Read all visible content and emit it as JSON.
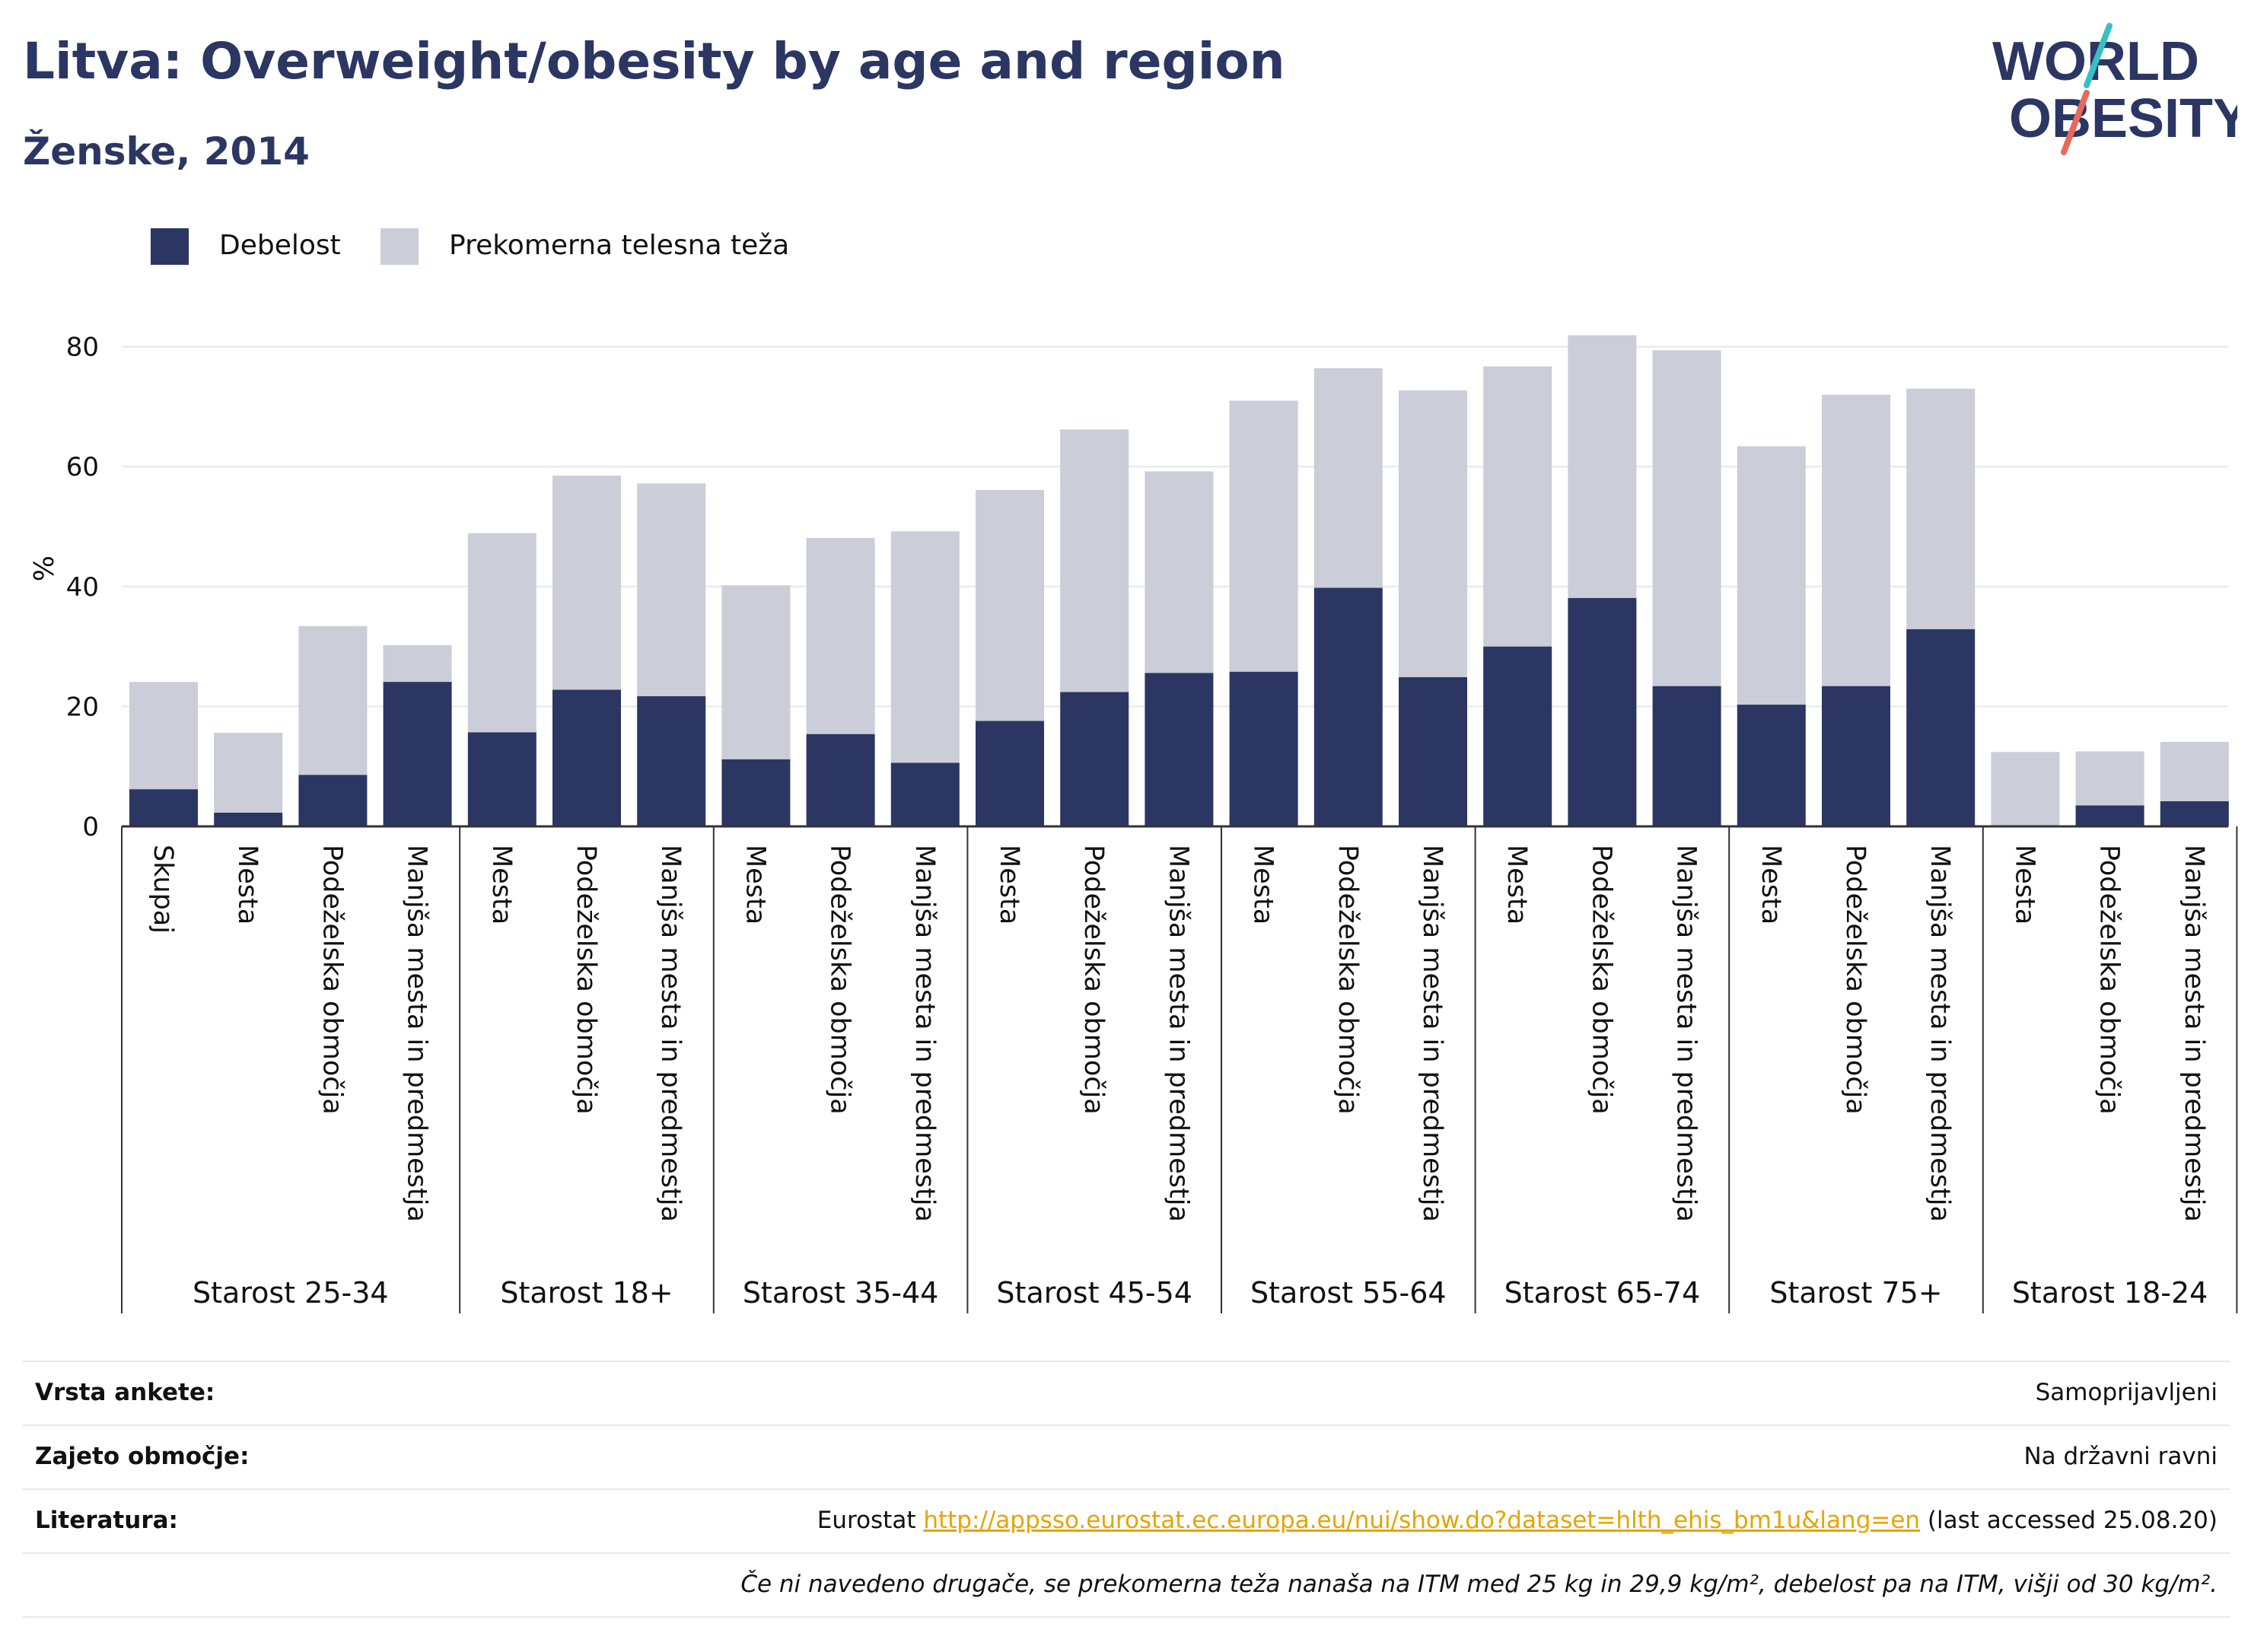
{
  "header": {
    "title": "Litva: Overweight/obesity by age and region",
    "subtitle": "Ženske, 2014"
  },
  "logo": {
    "line1": "WORLD",
    "line2": "OBESITY"
  },
  "colors": {
    "obesity": "#2b3663",
    "overweight": "#cbcdd8",
    "accent_teal": "#39c0c4",
    "accent_red": "#e8685a"
  },
  "legend": [
    {
      "label": "Debelost",
      "color": "#2b3663"
    },
    {
      "label": "Prekomerna telesna teža",
      "color": "#cbcdd8"
    }
  ],
  "chart_data": {
    "type": "bar",
    "stacked": true,
    "ylabel": "%",
    "ylim": [
      0,
      90
    ],
    "yticks": [
      0,
      20,
      40,
      60,
      80
    ],
    "grid": true,
    "legend_position": "top-left",
    "groups": [
      {
        "label": "Starost 25-34",
        "categories": [
          "Skupaj",
          "Mesta",
          "Podeželska območja",
          "Manjša mesta in predmestja"
        ]
      },
      {
        "label": "Starost 18+",
        "categories": [
          "Mesta",
          "Podeželska območja",
          "Manjša mesta in predmestja"
        ]
      },
      {
        "label": "Starost 35-44",
        "categories": [
          "Mesta",
          "Podeželska območja",
          "Manjša mesta in predmestja"
        ]
      },
      {
        "label": "Starost 45-54",
        "categories": [
          "Mesta",
          "Podeželska območja",
          "Manjša mesta in predmestja"
        ]
      },
      {
        "label": "Starost 55-64",
        "categories": [
          "Mesta",
          "Podeželska območja",
          "Manjša mesta in predmestja"
        ]
      },
      {
        "label": "Starost 65-74",
        "categories": [
          "Mesta",
          "Podeželska območja",
          "Manjša mesta in predmestja"
        ]
      },
      {
        "label": "Starost 75+",
        "categories": [
          "Mesta",
          "Podeželska območja",
          "Manjša mesta in predmestja"
        ]
      },
      {
        "label": "Starost 18-24",
        "categories": [
          "Mesta",
          "Podeželska območja",
          "Manjša mesta in predmestja"
        ]
      }
    ],
    "series": [
      {
        "name": "Debelost",
        "values": [
          6.2,
          2.3,
          8.6,
          24.1,
          15.7,
          22.8,
          21.7,
          11.2,
          15.4,
          10.6,
          17.6,
          22.4,
          25.6,
          25.8,
          39.8,
          24.9,
          30.0,
          38.1,
          23.4,
          20.3,
          23.4,
          32.9,
          0,
          3.5,
          4.2
        ]
      },
      {
        "name": "Prekomerna telesna teža",
        "values": [
          17.9,
          13.3,
          24.8,
          6.1,
          33.2,
          35.7,
          35.5,
          29.0,
          32.7,
          38.6,
          38.5,
          43.8,
          33.6,
          45.2,
          36.6,
          47.8,
          46.7,
          43.8,
          56.0,
          43.1,
          48.6,
          40.1,
          12.4,
          9.0,
          9.9
        ]
      }
    ]
  },
  "footer": {
    "rows": [
      {
        "key": "Vrsta ankete:",
        "value": "Samoprijavljeni"
      },
      {
        "key": "Zajeto območje:",
        "value": "Na državni ravni"
      }
    ],
    "literature": {
      "key": "Literatura:",
      "prefix": "Eurostat ",
      "link": "http://appsso.eurostat.ec.europa.eu/nui/show.do?dataset=hlth_ehis_bm1u&lang=en",
      "suffix": " (last accessed 25.08.20)"
    },
    "note": "Če ni navedeno drugače, se prekomerna teža nanaša na ITM med 25 kg in 29,9 kg/m², debelost pa na ITM, višji od 30 kg/m²."
  }
}
